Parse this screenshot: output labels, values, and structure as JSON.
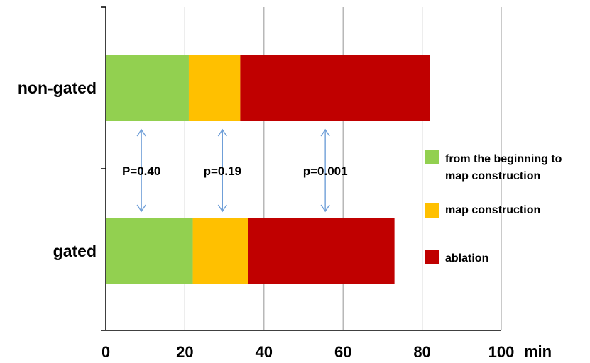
{
  "chart_data": {
    "type": "bar",
    "orientation": "horizontal",
    "stacked": true,
    "categories": [
      "non-gated",
      "gated"
    ],
    "series": [
      {
        "name": "from the beginning to map construction",
        "color": "#92d050",
        "values": [
          21,
          22
        ]
      },
      {
        "name": "map construction",
        "color": "#ffc000",
        "values": [
          13,
          14
        ]
      },
      {
        "name": "ablation",
        "color": "#c00000",
        "values": [
          48,
          37
        ]
      }
    ],
    "xlim": [
      0,
      100
    ],
    "xticks": [
      0,
      20,
      40,
      60,
      80,
      100
    ],
    "xunit": "min",
    "grid": true,
    "legend_position": "right",
    "annotations": [
      {
        "text": "P=0.40",
        "x": 9
      },
      {
        "text": "p=0.19",
        "x": 29.5
      },
      {
        "text": "p=0.001",
        "x": 55.5
      }
    ],
    "arrow_color": "#6f9fd8"
  }
}
